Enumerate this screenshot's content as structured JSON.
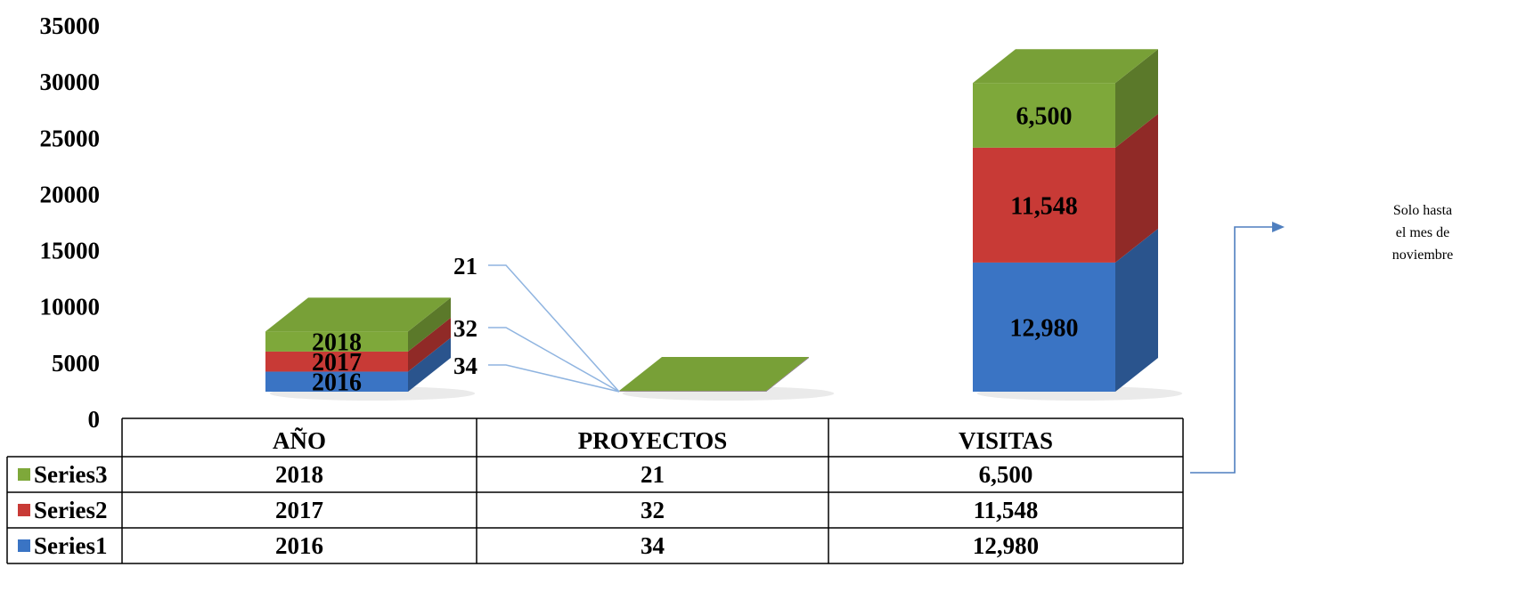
{
  "chart_data": {
    "type": "bar",
    "stacked": true,
    "three_d": true,
    "categories": [
      "AÑO",
      "PROYECTOS",
      "VISITAS"
    ],
    "series": [
      {
        "name": "Series1",
        "values": [
          2016,
          34,
          12980
        ],
        "labels": [
          "2016",
          "34",
          "12,980"
        ]
      },
      {
        "name": "Series2",
        "values": [
          2017,
          32,
          11548
        ],
        "labels": [
          "2017",
          "32",
          "11,548"
        ]
      },
      {
        "name": "Series3",
        "values": [
          2018,
          21,
          6500
        ],
        "labels": [
          "2018",
          "21",
          "6,500"
        ]
      }
    ],
    "ylim": [
      0,
      35000
    ],
    "yticks": [
      "0",
      "5000",
      "10000",
      "15000",
      "20000",
      "25000",
      "30000",
      "35000"
    ],
    "grid": false,
    "legend": "data-table",
    "title": "",
    "xlabel": "",
    "ylabel": "",
    "colors": {
      "Series1": "#3a74c4",
      "Series2": "#c83a36",
      "Series3": "#7ea83a"
    }
  },
  "annotation": {
    "text_lines": [
      "Solo hasta",
      "el mes de",
      "noviembre"
    ],
    "arrow_color": "#4f7fbf"
  }
}
